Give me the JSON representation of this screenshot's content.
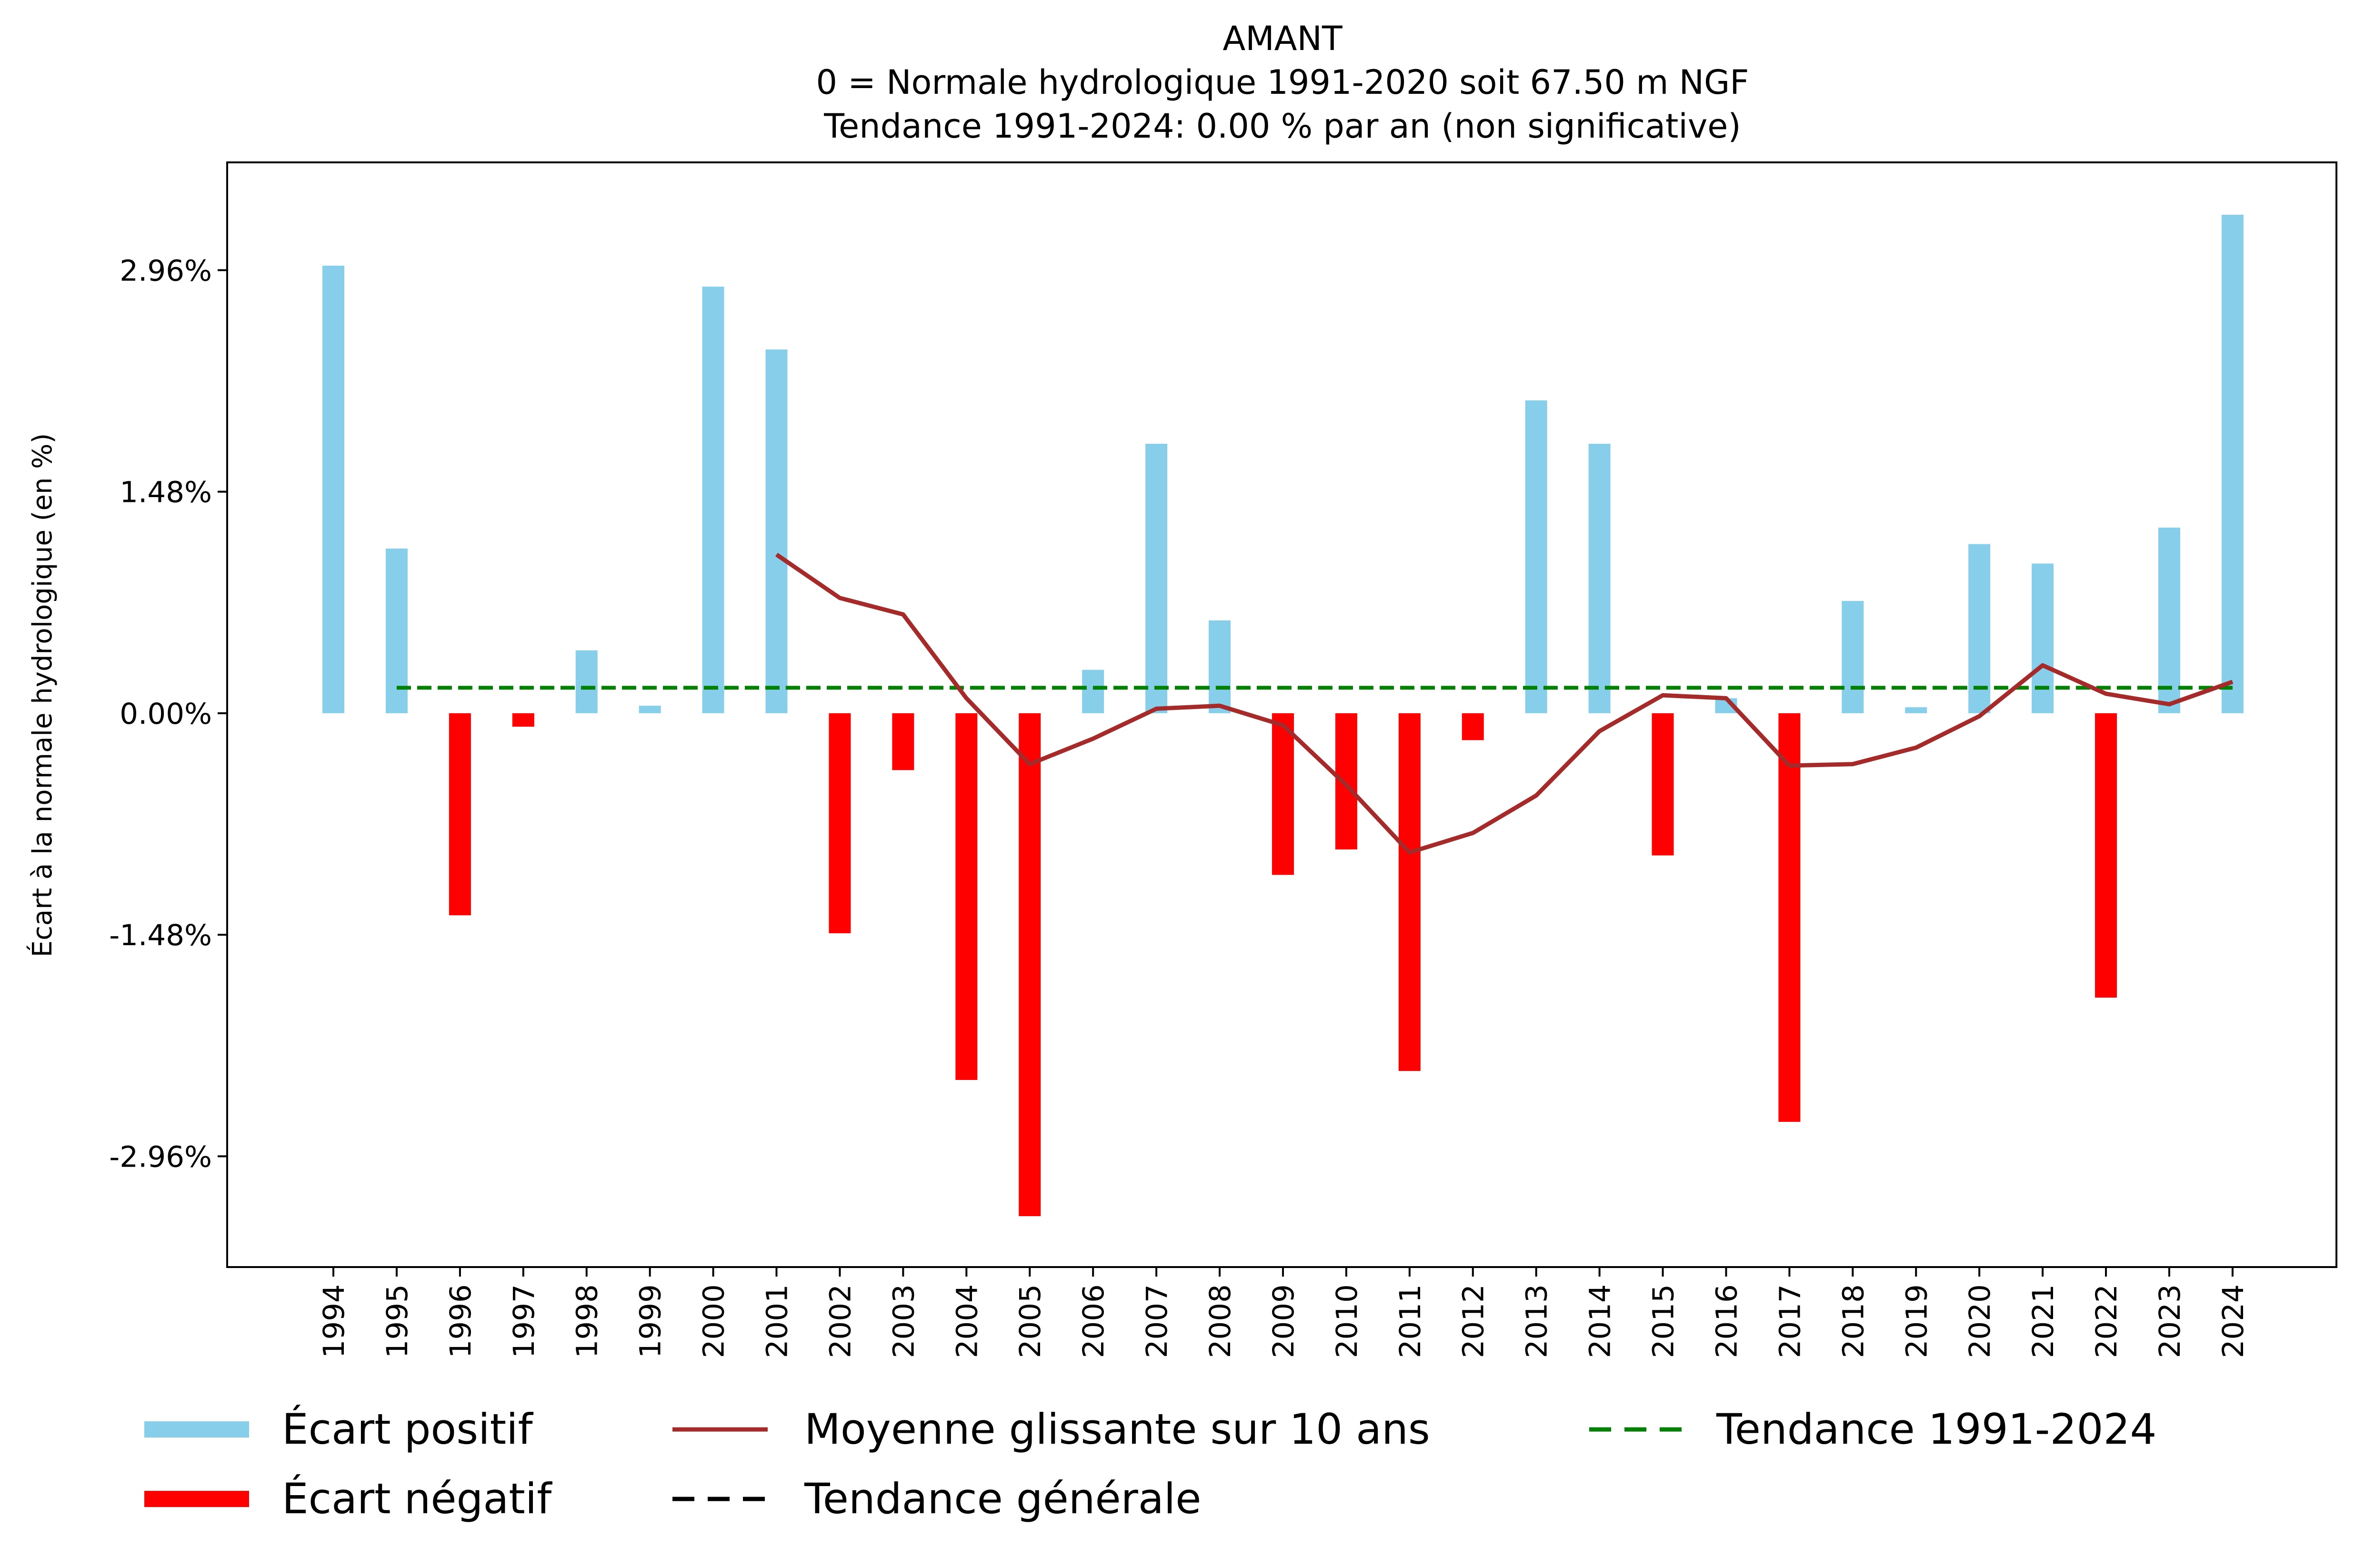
{
  "chart_data": {
    "type": "bar",
    "title": [
      "AMANT",
      "0 = Normale hydrologique 1991-2020 soit 67.50 m NGF",
      "Tendance 1991-2024: 0.00 % par an (non significative)"
    ],
    "xlabel": "",
    "ylabel": "Écart à la normale hydrologique (en %)",
    "ylim": [
      -3.7,
      3.68
    ],
    "yticks": [
      2.96,
      1.48,
      0.0,
      -1.48,
      -2.96
    ],
    "ytick_labels": [
      "2.96%",
      "1.48%",
      "0.00%",
      "-1.48%",
      "-2.96%"
    ],
    "grid": false,
    "categories": [
      "1994",
      "1995",
      "1996",
      "1997",
      "1998",
      "1999",
      "2000",
      "2001",
      "2002",
      "2003",
      "2004",
      "2005",
      "2006",
      "2007",
      "2008",
      "2009",
      "2010",
      "2011",
      "2012",
      "2013",
      "2014",
      "2015",
      "2016",
      "2017",
      "2018",
      "2019",
      "2020",
      "2021",
      "2022",
      "2023",
      "2024"
    ],
    "values": [
      2.99,
      1.1,
      -1.35,
      -0.09,
      0.42,
      0.05,
      2.85,
      2.43,
      -1.47,
      -0.38,
      -2.45,
      -3.36,
      0.29,
      1.8,
      0.62,
      -1.08,
      -0.91,
      -2.39,
      -0.18,
      2.09,
      1.8,
      -0.95,
      0.1,
      -2.73,
      0.75,
      0.04,
      1.13,
      1.0,
      -1.9,
      1.24,
      3.33
    ],
    "moving_average": {
      "name": "Moyenne glissante sur 10 ans",
      "x": [
        "2001",
        "2002",
        "2003",
        "2004",
        "2005",
        "2006",
        "2007",
        "2008",
        "2009",
        "2010",
        "2011",
        "2012",
        "2013",
        "2014",
        "2015",
        "2016",
        "2017",
        "2018",
        "2019",
        "2020",
        "2021",
        "2022",
        "2023",
        "2024"
      ],
      "values": [
        1.06,
        0.77,
        0.66,
        0.1,
        -0.34,
        -0.17,
        0.03,
        0.05,
        -0.08,
        -0.48,
        -0.93,
        -0.8,
        -0.55,
        -0.12,
        0.12,
        0.1,
        -0.35,
        -0.34,
        -0.23,
        -0.02,
        0.32,
        0.13,
        0.06,
        0.21
      ]
    },
    "trend_line": {
      "name": "Tendance 1991-2024",
      "value": 0.17
    },
    "legend": {
      "placement": "bottom",
      "entries": [
        {
          "label": "Écart positif",
          "color": "#87ceeb",
          "style": "bar"
        },
        {
          "label": "Écart négatif",
          "color": "#ff0000",
          "style": "bar"
        },
        {
          "label": "Moyenne glissante sur 10 ans",
          "color": "#a52a2a",
          "style": "line"
        },
        {
          "label": "Tendance générale",
          "color": "#000000",
          "style": "dashed"
        },
        {
          "label": "Tendance 1991-2024",
          "color": "#008000",
          "style": "dashed"
        }
      ]
    },
    "colors": {
      "positive": "#87ceeb",
      "negative": "#ff0000",
      "moving_average": "#a52a2a",
      "trend": "#008000",
      "general_trend": "#000000"
    }
  }
}
